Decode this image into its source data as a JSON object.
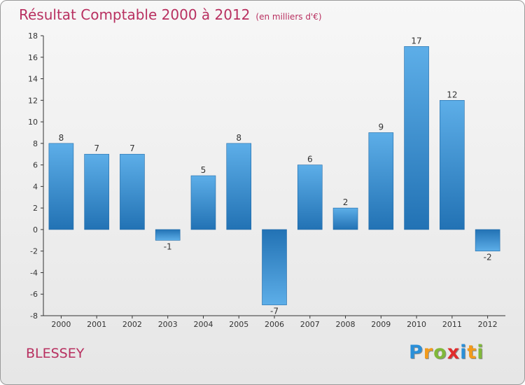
{
  "header": {
    "title": "Résultat Comptable 2000 à 2012",
    "subtitle": "(en milliers d'€)"
  },
  "footer": {
    "commune": "BLESSEY",
    "logo_letters": [
      "P",
      "r",
      "o",
      "x",
      "i",
      "t",
      "i"
    ],
    "logo_colors": [
      "#2a8fd8",
      "#f29a1a",
      "#80b83a",
      "#e02c2c",
      "#2a8fd8",
      "#f29a1a",
      "#80b83a"
    ]
  },
  "colors": {
    "bar_light": "#5daee8",
    "bar_dark": "#2272b4",
    "title": "#b83060"
  },
  "chart_data": {
    "type": "bar",
    "title": "Résultat Comptable 2000 à 2012",
    "xlabel": "",
    "ylabel": "",
    "categories": [
      "2000",
      "2001",
      "2002",
      "2003",
      "2004",
      "2005",
      "2006",
      "2007",
      "2008",
      "2009",
      "2010",
      "2011",
      "2012"
    ],
    "values": [
      8,
      7,
      7,
      -1,
      5,
      8,
      -7,
      6,
      2,
      9,
      17,
      12,
      -2
    ],
    "ylim": [
      -8,
      18
    ],
    "yticks": [
      -8,
      -6,
      -4,
      -2,
      0,
      2,
      4,
      6,
      8,
      10,
      12,
      14,
      16,
      18
    ],
    "grid": false
  }
}
